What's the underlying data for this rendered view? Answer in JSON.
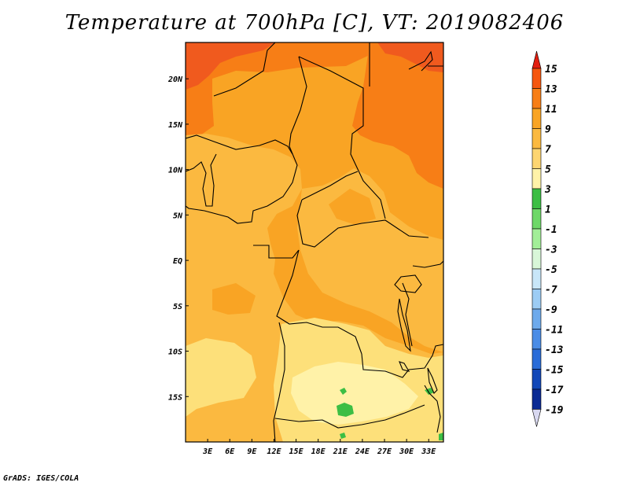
{
  "title": "Temperature at 700hPa [C], VT: 2019082406",
  "footer": "GrADS: IGES/COLA",
  "map": {
    "lon_range": [
      0,
      35
    ],
    "lat_range": [
      -20,
      24
    ],
    "lon_ticks": [
      "3E",
      "6E",
      "9E",
      "12E",
      "15E",
      "18E",
      "21E",
      "24E",
      "27E",
      "30E",
      "33E"
    ],
    "lat_ticks": [
      "20N",
      "15N",
      "10N",
      "5N",
      "EQ",
      "5S",
      "10S",
      "15S"
    ],
    "colors": {
      "c13_15": "#f05a1e",
      "c11_13": "#f77e16",
      "c9_11": "#f9a424",
      "c7_9": "#fbb940",
      "c5_7": "#fde07a",
      "c3_5": "#fff2a8",
      "c1_3": "#3cbe44",
      "border": "#000000"
    }
  },
  "colorbar": {
    "labels": [
      "15",
      "13",
      "11",
      "9",
      "7",
      "5",
      "3",
      "1",
      "-1",
      "-3",
      "-5",
      "-7",
      "-9",
      "-11",
      "-13",
      "-15",
      "-17",
      "-19"
    ],
    "colors": [
      "#fe2d07",
      "#f5560e",
      "#f77e16",
      "#f9a424",
      "#fbb940",
      "#fdd571",
      "#fff2a8",
      "#3cbe44",
      "#6ed868",
      "#a2ee98",
      "#d8f6d8",
      "#c8e6f8",
      "#9cccf4",
      "#6eaaec",
      "#4a8ce6",
      "#2a6cd8",
      "#1248b8",
      "#0a2a94",
      "#06106a"
    ],
    "top_arrow_color": "#e21e10",
    "bottom_arrow_color": "#d8d8f0"
  }
}
